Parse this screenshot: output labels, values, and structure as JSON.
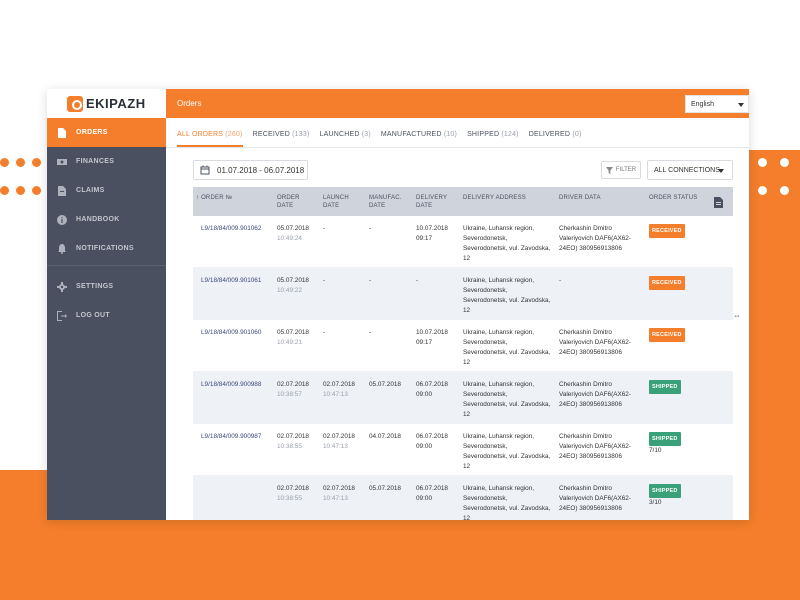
{
  "brand": {
    "logo_text": "EKIPAZH"
  },
  "header": {
    "title": "Orders",
    "language": "English"
  },
  "sidebar": {
    "items": [
      {
        "label": "ORDERS",
        "icon": "document-icon",
        "active": true
      },
      {
        "label": "FINANCES",
        "icon": "money-icon",
        "active": false
      },
      {
        "label": "CLAIMS",
        "icon": "claims-document-icon",
        "active": false
      },
      {
        "label": "HANDBOOK",
        "icon": "info-icon",
        "active": false
      },
      {
        "label": "NOTIFICATIONS",
        "icon": "bell-icon",
        "active": false
      }
    ],
    "secondary": [
      {
        "label": "SETTINGS",
        "icon": "gear-icon"
      },
      {
        "label": "LOG OUT",
        "icon": "logout-icon"
      }
    ]
  },
  "tabs": [
    {
      "label": "ALL ORDERS",
      "count": "(260)",
      "active": true
    },
    {
      "label": "RECEIVED",
      "count": "(133)"
    },
    {
      "label": "LAUNCHED",
      "count": "(3)"
    },
    {
      "label": "MANUFACTURED",
      "count": "(10)"
    },
    {
      "label": "SHIPPED",
      "count": "(124)"
    },
    {
      "label": "DELIVERED",
      "count": "(0)"
    }
  ],
  "toolbar": {
    "date_range": "01.07.2018 - 06.07.2018",
    "filter_label": "FILTER",
    "connections": "ALL CONNECTIONS"
  },
  "table": {
    "columns": {
      "order": "↑ ORDER №",
      "order_date": "ORDER\nDATE",
      "launch_date": "LAUNCH\nDATE",
      "manufac_date": "MANUFAC.\nDATE",
      "delivery_date": "DELIVERY\nDATE",
      "address": "DELIVERY ADDRESS",
      "driver": "DRIVER DATA",
      "status": "ORDER STATUS"
    },
    "rows": [
      {
        "order": "L9/18/84/009.901062",
        "order_date": "05.07.2018",
        "order_time": "10:49:24",
        "launch_date": "-",
        "launch_time": "",
        "manufac_date": "-",
        "delivery_date": "10.07.2018",
        "delivery_time": "09:17",
        "address": "Ukraine, Luhansk region, Severodonetsk, Severodonetsk, vul. Zavodska, 12",
        "driver": "Cherkashin Dmitro Valeriyovich DAF6(AX62-24EO) 380956913806",
        "status": "RECEIVED",
        "ship_count": ""
      },
      {
        "order": "L9/18/84/009.901061",
        "order_date": "05.07.2018",
        "order_time": "10:49:22",
        "launch_date": "-",
        "launch_time": "",
        "manufac_date": "-",
        "delivery_date": "-",
        "delivery_time": "",
        "address": "Ukraine, Luhansk region, Severodonetsk, Severodonetsk, vul. Zavodska, 12",
        "driver": "-",
        "status": "RECEIVED",
        "ship_count": ""
      },
      {
        "order": "L9/18/84/009.901060",
        "order_date": "05.07.2018",
        "order_time": "10:49:21",
        "launch_date": "-",
        "launch_time": "",
        "manufac_date": "-",
        "delivery_date": "10.07.2018",
        "delivery_time": "09:17",
        "address": "Ukraine, Luhansk region, Severodonetsk, Severodonetsk, vul. Zavodska, 12",
        "driver": "Cherkashin Dmitro Valeriyovich DAF6(AX62-24EO) 380956913806",
        "status": "RECEIVED",
        "ship_count": ""
      },
      {
        "order": "L9/18/84/009.900988",
        "order_date": "02.07.2018",
        "order_time": "10:38:57",
        "launch_date": "02.07.2018",
        "launch_time": "10:47:13",
        "manufac_date": "05.07.2018",
        "delivery_date": "06.07.2018",
        "delivery_time": "09:00",
        "address": "Ukraine, Luhansk region, Severodonetsk, Severodonetsk, vul. Zavodska, 12",
        "driver": "Cherkashin Dmitro Valeriyovich DAF6(AX62-24EO) 380956913806",
        "status": "SHIPPED",
        "ship_count": ""
      },
      {
        "order": "L9/18/84/009.900987",
        "order_date": "02.07.2018",
        "order_time": "10:38:55",
        "launch_date": "02.07.2018",
        "launch_time": "10:47:13",
        "manufac_date": "04.07.2018",
        "delivery_date": "06.07.2018",
        "delivery_time": "09:00",
        "address": "Ukraine, Luhansk region, Severodonetsk, Severodonetsk, vul. Zavodska, 12",
        "driver": "Cherkashin Dmitro Valeriyovich DAF6(AX62-24EO) 380956913806",
        "status": "SHIPPED",
        "ship_count": "7/10"
      },
      {
        "order": "",
        "order_date": "02.07.2018",
        "order_time": "10:38:55",
        "launch_date": "02.07.2018",
        "launch_time": "10:47:13",
        "manufac_date": "05.07.2018",
        "delivery_date": "06.07.2018",
        "delivery_time": "09:00",
        "address": "Ukraine, Luhansk region, Severodonetsk, Severodonetsk, vul. Zavodska, 12",
        "driver": "Cherkashin Dmitro Valeriyovich DAF6(AX62-24EO) 380956913806",
        "status": "SHIPPED",
        "ship_count": "3/10"
      }
    ]
  },
  "colors": {
    "accent": "#f47e2b",
    "sidebar": "#4a505f",
    "shipped": "#3aa07a",
    "header_row": "#cfd3dc"
  }
}
